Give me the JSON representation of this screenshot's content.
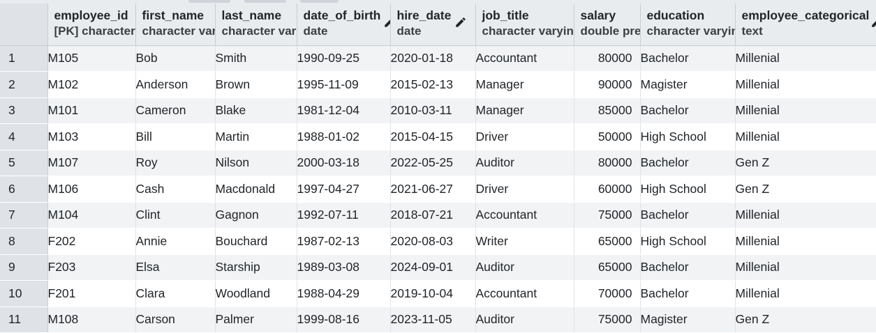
{
  "columns": [
    {
      "name": "employee_id",
      "type": "[PK] character"
    },
    {
      "name": "first_name",
      "type": "character var"
    },
    {
      "name": "last_name",
      "type": "character var"
    },
    {
      "name": "date_of_birth",
      "type": "date"
    },
    {
      "name": "hire_date",
      "type": "date"
    },
    {
      "name": "job_title",
      "type": "character varyin"
    },
    {
      "name": "salary",
      "type": "double pre"
    },
    {
      "name": "education",
      "type": "character varyin"
    },
    {
      "name": "employee_categorical",
      "type": "text"
    }
  ],
  "rows": [
    {
      "n": "1",
      "employee_id": "M105",
      "first_name": "Bob",
      "last_name": "Smith",
      "date_of_birth": "1990-09-25",
      "hire_date": "2020-01-18",
      "job_title": "Accountant",
      "salary": "80000",
      "education": "Bachelor",
      "employee_categorical": "Millenial"
    },
    {
      "n": "2",
      "employee_id": "M102",
      "first_name": "Anderson",
      "last_name": "Brown",
      "date_of_birth": "1995-11-09",
      "hire_date": "2015-02-13",
      "job_title": "Manager",
      "salary": "90000",
      "education": "Magister",
      "employee_categorical": "Millenial"
    },
    {
      "n": "3",
      "employee_id": "M101",
      "first_name": "Cameron",
      "last_name": "Blake",
      "date_of_birth": "1981-12-04",
      "hire_date": "2010-03-11",
      "job_title": "Manager",
      "salary": "85000",
      "education": "Bachelor",
      "employee_categorical": "Millenial"
    },
    {
      "n": "4",
      "employee_id": "M103",
      "first_name": "Bill",
      "last_name": "Martin",
      "date_of_birth": "1988-01-02",
      "hire_date": "2015-04-15",
      "job_title": "Driver",
      "salary": "50000",
      "education": "High School",
      "employee_categorical": "Millenial"
    },
    {
      "n": "5",
      "employee_id": "M107",
      "first_name": "Roy",
      "last_name": "Nilson",
      "date_of_birth": "2000-03-18",
      "hire_date": "2022-05-25",
      "job_title": "Auditor",
      "salary": "80000",
      "education": "Bachelor",
      "employee_categorical": "Gen Z"
    },
    {
      "n": "6",
      "employee_id": "M106",
      "first_name": "Cash",
      "last_name": "Macdonald",
      "date_of_birth": "1997-04-27",
      "hire_date": "2021-06-27",
      "job_title": "Driver",
      "salary": "60000",
      "education": "High School",
      "employee_categorical": "Gen Z"
    },
    {
      "n": "7",
      "employee_id": "M104",
      "first_name": "Clint",
      "last_name": "Gagnon",
      "date_of_birth": "1992-07-11",
      "hire_date": "2018-07-21",
      "job_title": "Accountant",
      "salary": "75000",
      "education": "Bachelor",
      "employee_categorical": "Millenial"
    },
    {
      "n": "8",
      "employee_id": "F202",
      "first_name": "Annie",
      "last_name": "Bouchard",
      "date_of_birth": "1987-02-13",
      "hire_date": "2020-08-03",
      "job_title": "Writer",
      "salary": "65000",
      "education": "High School",
      "employee_categorical": "Millenial"
    },
    {
      "n": "9",
      "employee_id": "F203",
      "first_name": "Elsa",
      "last_name": "Starship",
      "date_of_birth": "1989-03-08",
      "hire_date": "2024-09-01",
      "job_title": "Auditor",
      "salary": "65000",
      "education": "Bachelor",
      "employee_categorical": "Millenial"
    },
    {
      "n": "10",
      "employee_id": "F201",
      "first_name": "Clara",
      "last_name": "Woodland",
      "date_of_birth": "1988-04-29",
      "hire_date": "2019-10-04",
      "job_title": "Accountant",
      "salary": "70000",
      "education": "Bachelor",
      "employee_categorical": "Millenial"
    },
    {
      "n": "11",
      "employee_id": "M108",
      "first_name": "Carson",
      "last_name": "Palmer",
      "date_of_birth": "1999-08-16",
      "hire_date": "2023-11-05",
      "job_title": "Auditor",
      "salary": "75000",
      "education": "Magister",
      "employee_categorical": "Gen Z"
    }
  ]
}
